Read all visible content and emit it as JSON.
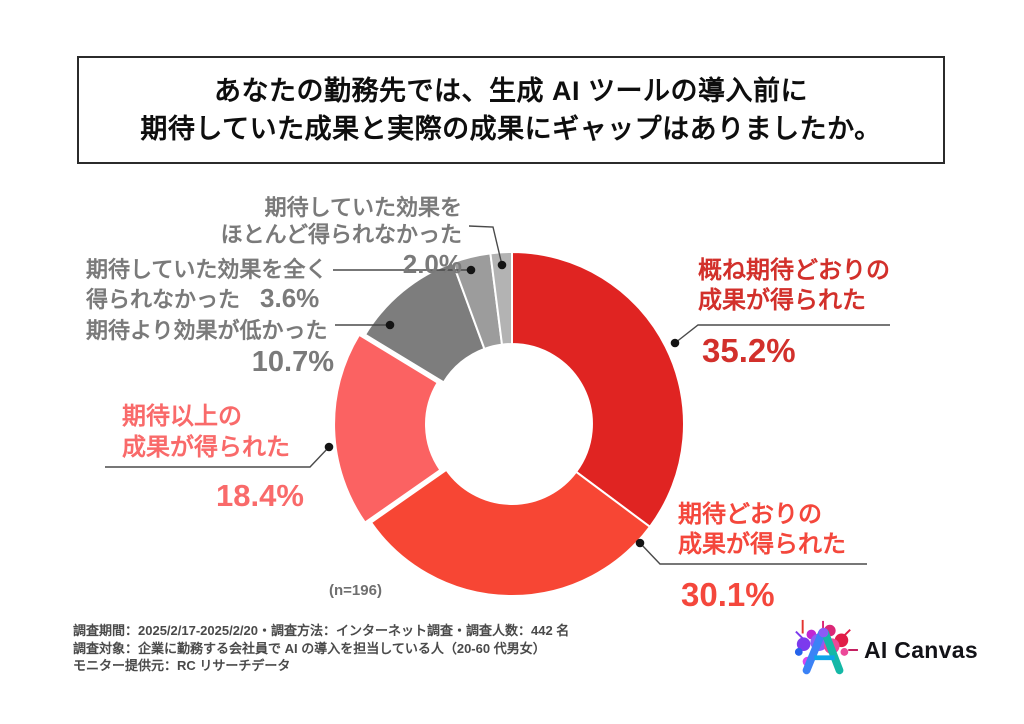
{
  "title": {
    "line1": "あなたの勤務先では、生成 AI ツールの導入前に",
    "line2": "期待していた成果と実際の成果にギャップはありましたか。"
  },
  "chart_data": {
    "type": "pie",
    "subtype": "donut",
    "unit": "%",
    "sample_label": "(n=196)",
    "start_angle": "12-oclock",
    "direction": "clockwise",
    "segments": [
      {
        "label": "概ね期待どおりの成果が得られた",
        "value": 35.2,
        "color": "#E02422",
        "text_color": "#D2302B",
        "exploded": false
      },
      {
        "label": "期待どおりの成果が得られた",
        "value": 30.1,
        "color": "#F74634",
        "text_color": "#F4473C",
        "exploded": false
      },
      {
        "label": "期待以上の成果が得られた",
        "value": 18.4,
        "color": "#FB6262",
        "text_color": "#F96A6A",
        "exploded": true
      },
      {
        "label": "期待より効果が低かった",
        "value": 10.7,
        "color": "#7D7D7D",
        "text_color": "#7A7A7A",
        "exploded": false
      },
      {
        "label": "期待していた効果を全く得られなかった",
        "value": 3.6,
        "color": "#9C9C9C",
        "text_color": "#7A7A7A",
        "exploded": false
      },
      {
        "label": "期待していた効果をほとんど得られなかった",
        "value": 2.0,
        "color": "#B3B3B3",
        "text_color": "#7A7A7A",
        "exploded": false
      }
    ],
    "callouts": [
      {
        "line1": "概ね期待どおりの",
        "line2": "成果が得られた",
        "pct": "35.2%"
      },
      {
        "line1": "期待どおりの",
        "line2": "成果が得られた",
        "pct": "30.1%"
      },
      {
        "line1": "期待以上の",
        "line2": "成果が得られた",
        "pct": "18.4%"
      },
      {
        "line1": "期待より効果が低かった",
        "pct": "10.7%"
      },
      {
        "line1": "期待していた効果を全く",
        "line2": "得られなかった",
        "pct": "3.6%"
      },
      {
        "line1": "期待していた効果を",
        "line2": "ほとんど得られなかった",
        "pct": "2.0%"
      }
    ]
  },
  "footer": {
    "line1": "調査期間：2025/2/17-2025/2/20・調査方法：インターネット調査・調査人数：442 名",
    "line2": "調査対象：企業に勤務する会社員で AI の導入を担当している人（20-60 代男女）",
    "line3": "モニター提供元：RC リサーチデータ"
  },
  "logo": {
    "text": "AI Canvas"
  }
}
